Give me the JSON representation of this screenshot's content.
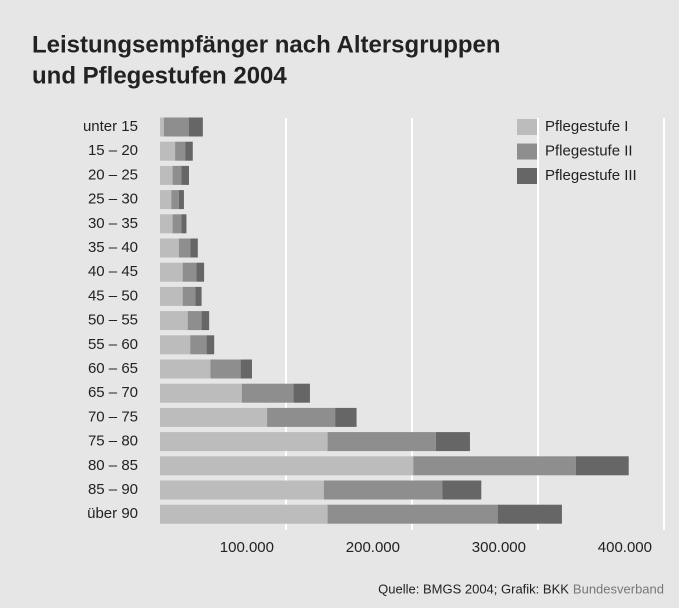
{
  "chart_data": {
    "type": "stacked_barh",
    "title": [
      "Leistungsempfänger nach Altersgruppen",
      "und Pflegestufen 2004"
    ],
    "categories": [
      "unter 15",
      "15 – 20",
      "20 – 25",
      "25 – 30",
      "30 – 35",
      "35 – 40",
      "40 – 45",
      "45 – 50",
      "50 – 55",
      "55 – 60",
      "60 – 65",
      "65 – 70",
      "70 – 75",
      "75 – 80",
      "80 – 85",
      "85 – 90",
      "über 90"
    ],
    "series": [
      {
        "name": "Pflegestufe I",
        "color": "#bcbcbc",
        "values": [
          3000,
          12000,
          10000,
          9000,
          10000,
          15000,
          18000,
          18000,
          22000,
          24000,
          40000,
          65000,
          85000,
          133000,
          201000,
          130000,
          133000
        ]
      },
      {
        "name": "Pflegestufe II",
        "color": "#8e8e8e",
        "values": [
          20000,
          8000,
          7000,
          6000,
          7000,
          9000,
          11000,
          10000,
          11000,
          13000,
          24000,
          41000,
          54000,
          86000,
          129000,
          94000,
          135000
        ]
      },
      {
        "name": "Pflegestufe III",
        "color": "#666666",
        "values": [
          11000,
          6000,
          6000,
          4000,
          4000,
          6000,
          6000,
          5000,
          6000,
          6000,
          9000,
          13000,
          17000,
          27000,
          42000,
          31000,
          51000
        ]
      }
    ],
    "xlim": [
      0,
      400000
    ],
    "xticks": [
      {
        "value": 100000,
        "label": "100.000"
      },
      {
        "value": 200000,
        "label": "200.000"
      },
      {
        "value": 300000,
        "label": "300.000"
      },
      {
        "value": 400000,
        "label": "400.000"
      }
    ],
    "grid": true,
    "legend": "top-right",
    "source": "Quelle: BMGS 2004; Grafik: BKK",
    "source_brand": "Bundesverband"
  }
}
